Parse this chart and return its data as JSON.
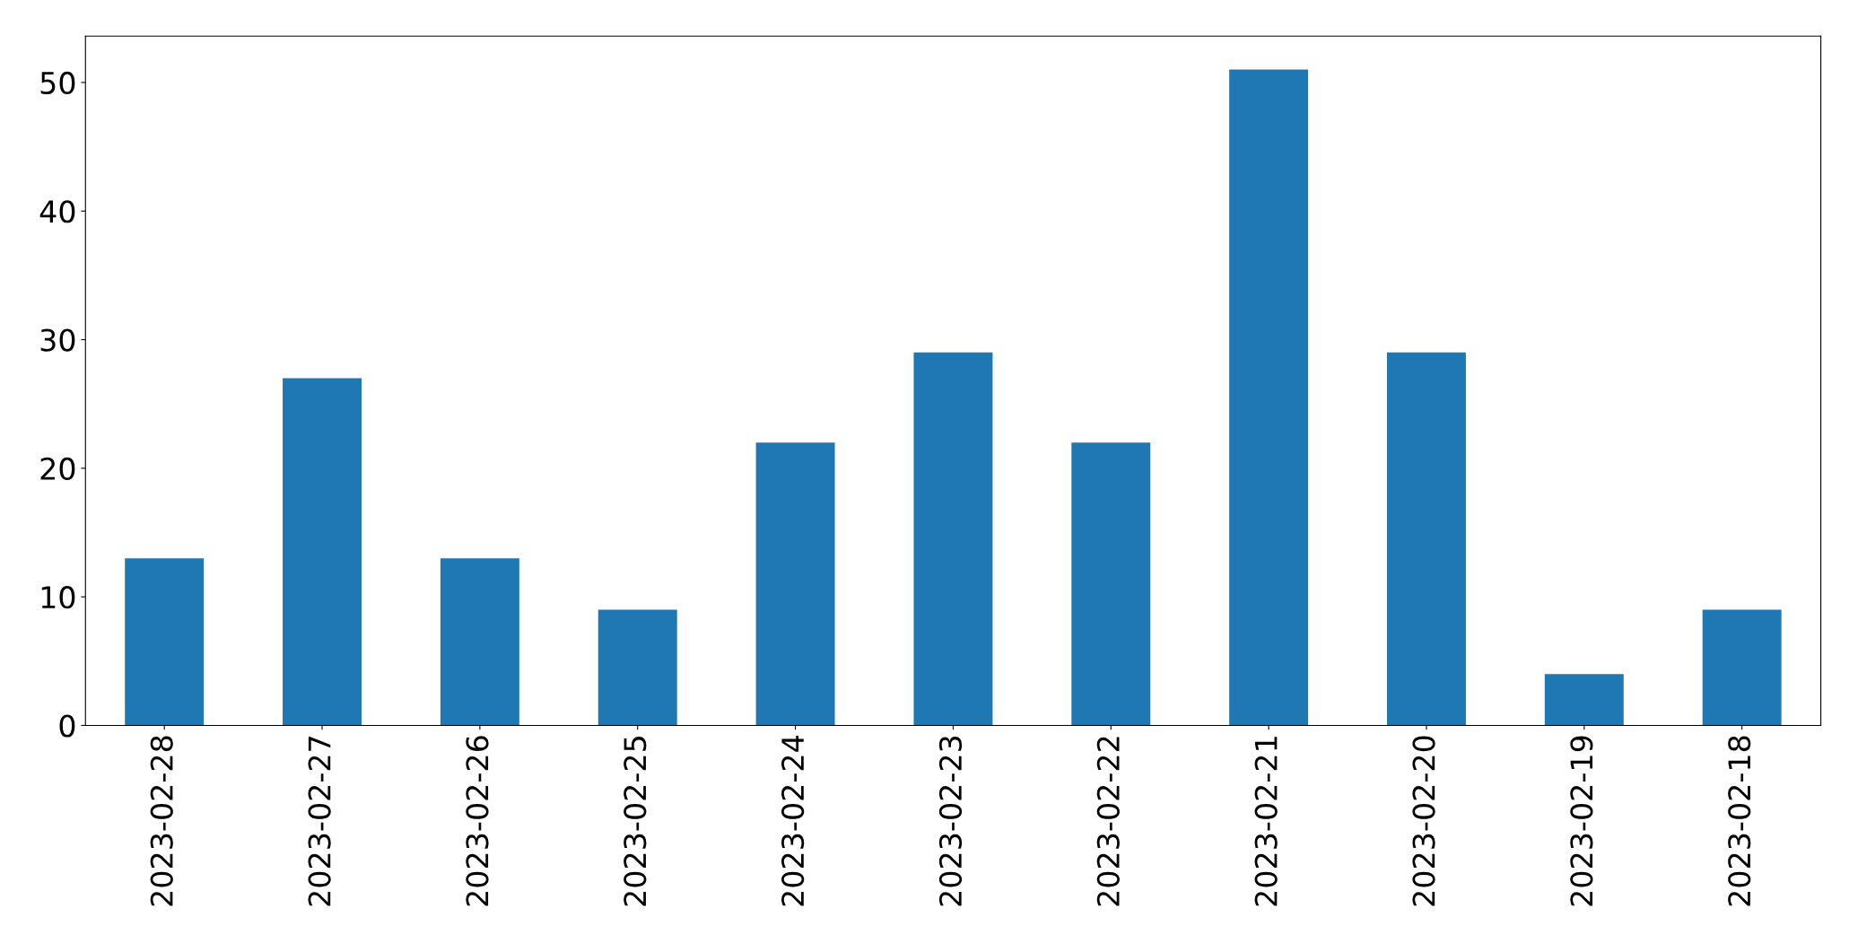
{
  "chart_data": {
    "type": "bar",
    "categories": [
      "2023-02-28",
      "2023-02-27",
      "2023-02-26",
      "2023-02-25",
      "2023-02-24",
      "2023-02-23",
      "2023-02-22",
      "2023-02-21",
      "2023-02-20",
      "2023-02-19",
      "2023-02-18"
    ],
    "values": [
      13,
      27,
      13,
      9,
      22,
      29,
      22,
      51,
      29,
      4,
      9
    ],
    "color": "#1f77b4",
    "ylim": [
      0,
      53.6
    ],
    "yticks": [
      0,
      10,
      20,
      30,
      40,
      50
    ],
    "grid": false,
    "legend": false
  }
}
